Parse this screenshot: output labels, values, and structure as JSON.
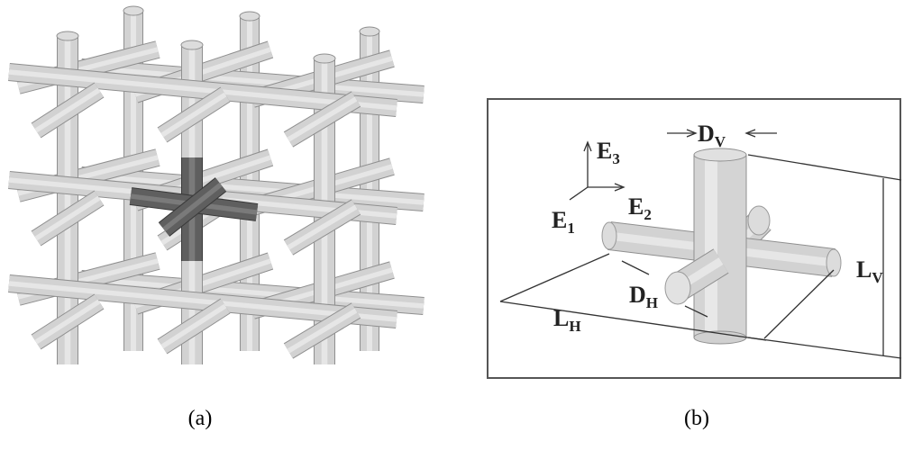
{
  "panels": [
    {
      "caption": "(a)"
    },
    {
      "caption": "(b)",
      "axes": [
        {
          "letter": "E",
          "sub": "3"
        },
        {
          "letter": "E",
          "sub": "2"
        },
        {
          "letter": "E",
          "sub": "1"
        }
      ],
      "dimensions": [
        {
          "letter": "D",
          "sub": "V"
        },
        {
          "letter": "D",
          "sub": "H"
        },
        {
          "letter": "L",
          "sub": "V"
        },
        {
          "letter": "L",
          "sub": "H"
        }
      ]
    }
  ]
}
